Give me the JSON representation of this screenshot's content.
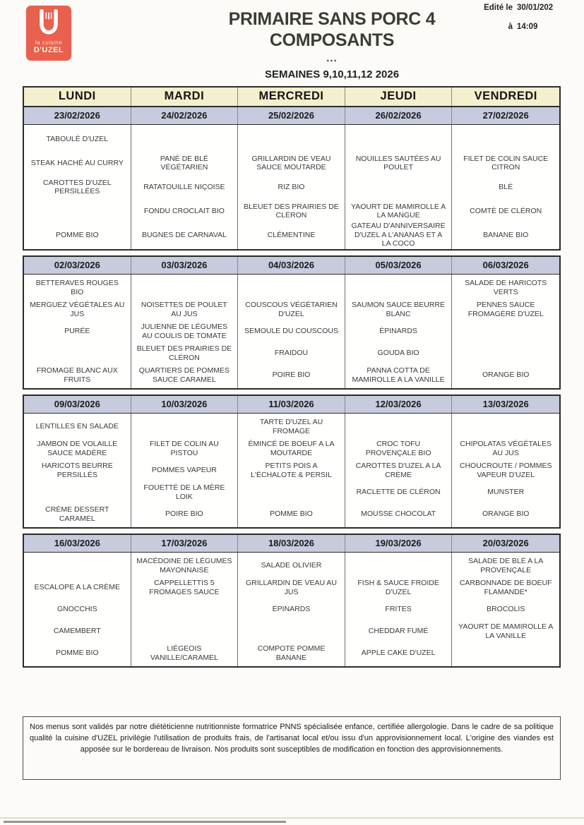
{
  "logo": {
    "line1": "la cuisine",
    "line2": "D'UZEL"
  },
  "header": {
    "title_line1": "PRIMAIRE SANS PORC 4",
    "title_line2": "COMPOSANTS",
    "dots": "...",
    "subtitle": "SEMAINES 9,10,11,12 2026",
    "edited_label": "Edité le",
    "edited_date": "30/01/202",
    "at_label": "à",
    "edited_time": "14:09"
  },
  "table": {
    "days": [
      "LUNDI",
      "MARDI",
      "MERCREDI",
      "JEUDI",
      "VENDREDI"
    ],
    "weeks": [
      {
        "dates": [
          "23/02/2026",
          "24/02/2026",
          "25/02/2026",
          "26/02/2026",
          "27/02/2026"
        ],
        "menus": [
          [
            "TABOULÉ D'UZEL",
            "STEAK HACHÉ AU CURRY",
            "CAROTTES D'UZEL PERSILLÉES",
            "",
            "POMME BIO"
          ],
          [
            "",
            "PANÉ DE BLÉ VÉGÉTARIEN",
            "RATATOUILLE NIÇOISE",
            "FONDU CROCLAIT BIO",
            "BUGNES DE CARNAVAL"
          ],
          [
            "",
            "GRILLARDIN DE VEAU SAUCE MOUTARDE",
            "RIZ BIO",
            "BLEUET DES PRAIRIES DE CLÉRON",
            "CLÉMENTINE"
          ],
          [
            "",
            "NOUILLES SAUTÉES AU POULET",
            "",
            "YAOURT DE MAMIROLLE A LA MANGUE",
            "GATEAU D'ANNIVERSAIRE D'UZEL A L'ANANAS ET A LA COCO"
          ],
          [
            "",
            "FILET DE COLIN SAUCE CITRON",
            "BLÉ",
            "COMTÉ DE CLÉRON",
            "BANANE BIO"
          ]
        ]
      },
      {
        "dates": [
          "02/03/2026",
          "03/03/2026",
          "04/03/2026",
          "05/03/2026",
          "06/03/2026"
        ],
        "menus": [
          [
            "BETTERAVES ROUGES BIO",
            "MERGUEZ VÉGÉTALES AU JUS",
            "PURÉE",
            "",
            "FROMAGE BLANC AUX FRUITS"
          ],
          [
            "",
            "NOISETTES DE POULET AU JUS",
            "JULIENNE DE LÉGUMES AU COULIS DE TOMATE",
            "BLEUET DES PRAIRIES DE CLÉRON",
            "QUARTIERS DE POMMES SAUCE CARAMEL"
          ],
          [
            "",
            "COUSCOUS VÉGÉTARIEN D'UZEL",
            "SEMOULE DU COUSCOUS",
            "FRAIDOU",
            "POIRE BIO"
          ],
          [
            "",
            "SAUMON SAUCE BEURRE BLANC",
            "ÉPINARDS",
            "GOUDA BIO",
            "PANNA COTTA DE MAMIROLLE A LA VANILLE"
          ],
          [
            "SALADE DE HARICOTS VERTS",
            "PENNES SAUCE FROMAGÈRE D'UZEL",
            "",
            "",
            "ORANGE BIO"
          ]
        ]
      },
      {
        "dates": [
          "09/03/2026",
          "10/03/2026",
          "11/03/2026",
          "12/03/2026",
          "13/03/2026"
        ],
        "menus": [
          [
            "LENTILLES EN SALADE",
            "JAMBON DE VOLAILLE SAUCE MADÈRE",
            "HARICOTS BEURRE PERSILLÉS",
            "",
            "CRÈME DESSERT CARAMEL"
          ],
          [
            "",
            "FILET DE COLIN AU PISTOU",
            "POMMES VAPEUR",
            "FOUETTÉ DE LA MÈRE LOIK",
            "POIRE BIO"
          ],
          [
            "TARTE D'UZEL AU FROMAGE",
            "ÉMINCÉ DE BOEUF A LA MOUTARDE",
            "PETITS POIS A L'ÉCHALOTE & PERSIL",
            "",
            "POMME BIO"
          ],
          [
            "",
            "CROC TOFU PROVENÇALE BIO",
            "CAROTTES D'UZEL A LA CRÈME",
            "RACLETTE DE CLÉRON",
            "MOUSSE CHOCOLAT"
          ],
          [
            "",
            "CHIPOLATAS VÉGÉTALES AU JUS",
            "CHOUCROUTE / POMMES VAPEUR D'UZEL",
            "MUNSTER",
            "ORANGE BIO"
          ]
        ]
      },
      {
        "dates": [
          "16/03/2026",
          "17/03/2026",
          "18/03/2026",
          "19/03/2026",
          "20/03/2026"
        ],
        "menus": [
          [
            "",
            "ESCALOPE A LA CRÈME",
            "GNOCCHIS",
            "CAMEMBERT",
            "POMME BIO"
          ],
          [
            "MACÉDOINE DE LÉGUMES MAYONNAISE",
            "CAPPELLETTIS 5 FROMAGES SAUCE",
            "",
            "",
            "LIÉGEOIS VANILLE/CARAMEL"
          ],
          [
            "SALADE OLIVIER",
            "GRILLARDIN DE VEAU AU JUS",
            "ÉPINARDS",
            "",
            "COMPOTE POMME BANANE"
          ],
          [
            "",
            "FISH & SAUCE FROIDE D'UZEL",
            "FRITES",
            "CHEDDAR FUMÉ",
            "APPLE CAKE D'UZEL"
          ],
          [
            "SALADE DE BLÉ A LA PROVENÇALE",
            "CARBONNADE DE BOEUF FLAMANDE*",
            "BROCOLIS",
            "YAOURT DE MAMIROLLE A LA VANILLE",
            ""
          ]
        ]
      }
    ]
  },
  "footer": {
    "note": "Nos menus sont validés par notre diététicienne nutritionniste formatrice PNNS spécialisée enfance, certifiée allergologie. Dans le cadre de sa politique qualité la cuisine d'UZEL privilégie l'utilisation de produits frais, de l'artisanat local et/ou issu d'un approvisionnement local. L'origine des viandes est apposée sur le bordereau de livraison. Nos produits sont susceptibles de modification en fonction des approvisionnements."
  },
  "colors": {
    "logo_red": "#e8604e",
    "day_header_bg": "#f4efcd",
    "date_row_bg": "#c7cbde"
  }
}
